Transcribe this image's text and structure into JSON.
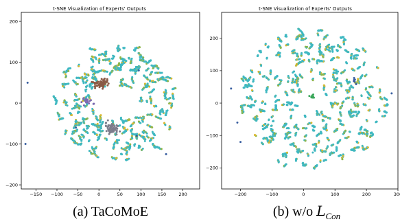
{
  "chart_data": [
    {
      "type": "scatter",
      "title": "t-SNE Visualization of Experts' Outputs",
      "caption": "(a) TaCoMoE",
      "xlabel": "",
      "ylabel": "",
      "xlim": [
        -185,
        240
      ],
      "ylim": [
        -210,
        222
      ],
      "x_ticks": [
        -150,
        -100,
        -50,
        0,
        50,
        100,
        150,
        200
      ],
      "y_ticks": [
        -200,
        -100,
        0,
        100,
        200
      ],
      "grid": false,
      "legend": "none",
      "colors": {
        "main": "#3fb8c1",
        "secondary": "#d9b830",
        "mixed": "#8fb54a",
        "cluster_brown": "#8a5a45",
        "cluster_gray": "#7c7c8c",
        "accent_blue": "#3a5fa0"
      },
      "pattern": "ring of points around a sparse center with two compact clusters near the middle",
      "ring": {
        "center": [
          40,
          0
        ],
        "rx": 150,
        "ry": 140,
        "inner_rx": 55,
        "inner_ry": 50,
        "count": 1400
      },
      "clusters": [
        {
          "x": 5,
          "y": 48,
          "sx": 8,
          "sy": 5,
          "count": 70,
          "color": "#8a5a45"
        },
        {
          "x": 30,
          "y": -62,
          "sx": 8,
          "sy": 7,
          "count": 60,
          "color": "#7c7c8c"
        },
        {
          "x": -28,
          "y": 5,
          "sx": 8,
          "sy": 8,
          "count": 18,
          "color": "#7a6ab0"
        }
      ],
      "scatter_points": [
        {
          "x": -170,
          "y": 50,
          "color": "#3a5fa0"
        },
        {
          "x": -175,
          "y": -100,
          "color": "#3a5fa0"
        },
        {
          "x": -55,
          "y": -60,
          "color": "#3a5fa0"
        },
        {
          "x": 95,
          "y": 80,
          "color": "#3a5fa0"
        },
        {
          "x": 160,
          "y": -125,
          "color": "#3a5fa0"
        },
        {
          "x": 90,
          "y": -80,
          "color": "#3a5fa0"
        }
      ]
    },
    {
      "type": "scatter",
      "title": "t-SNE Visualization of Experts' Outputs",
      "caption_prefix": "(b) w/o ",
      "caption_symbol": "L",
      "caption_subscript": "Con",
      "xlabel": "",
      "ylabel": "",
      "xlim": [
        -260,
        300
      ],
      "ylim": [
        -265,
        280
      ],
      "x_ticks": [
        -200,
        -100,
        0,
        100,
        200,
        300
      ],
      "y_ticks": [
        -200,
        -100,
        0,
        100,
        200
      ],
      "grid": false,
      "legend": "none",
      "colors": {
        "main": "#3fb8c1",
        "secondary": "#d9b830",
        "mixed": "#8fb54a",
        "accent_blue": "#3a5fa0"
      },
      "pattern": "broad disk of points with a small sparse hole near the center",
      "ring": {
        "center": [
          30,
          10
        ],
        "rx": 230,
        "ry": 225,
        "inner_rx": 45,
        "inner_ry": 40,
        "count": 1900
      },
      "clusters": [
        {
          "x": 30,
          "y": 20,
          "sx": 5,
          "sy": 4,
          "count": 10,
          "color": "#3aa65a"
        },
        {
          "x": 160,
          "y": 70,
          "sx": 4,
          "sy": 4,
          "count": 6,
          "color": "#3a5fa0"
        }
      ],
      "scatter_points": [
        {
          "x": -230,
          "y": 45,
          "color": "#3a5fa0"
        },
        {
          "x": -210,
          "y": -60,
          "color": "#3a5fa0"
        },
        {
          "x": -200,
          "y": -120,
          "color": "#3a5fa0"
        },
        {
          "x": 280,
          "y": 30,
          "color": "#3a5fa0"
        }
      ]
    }
  ]
}
